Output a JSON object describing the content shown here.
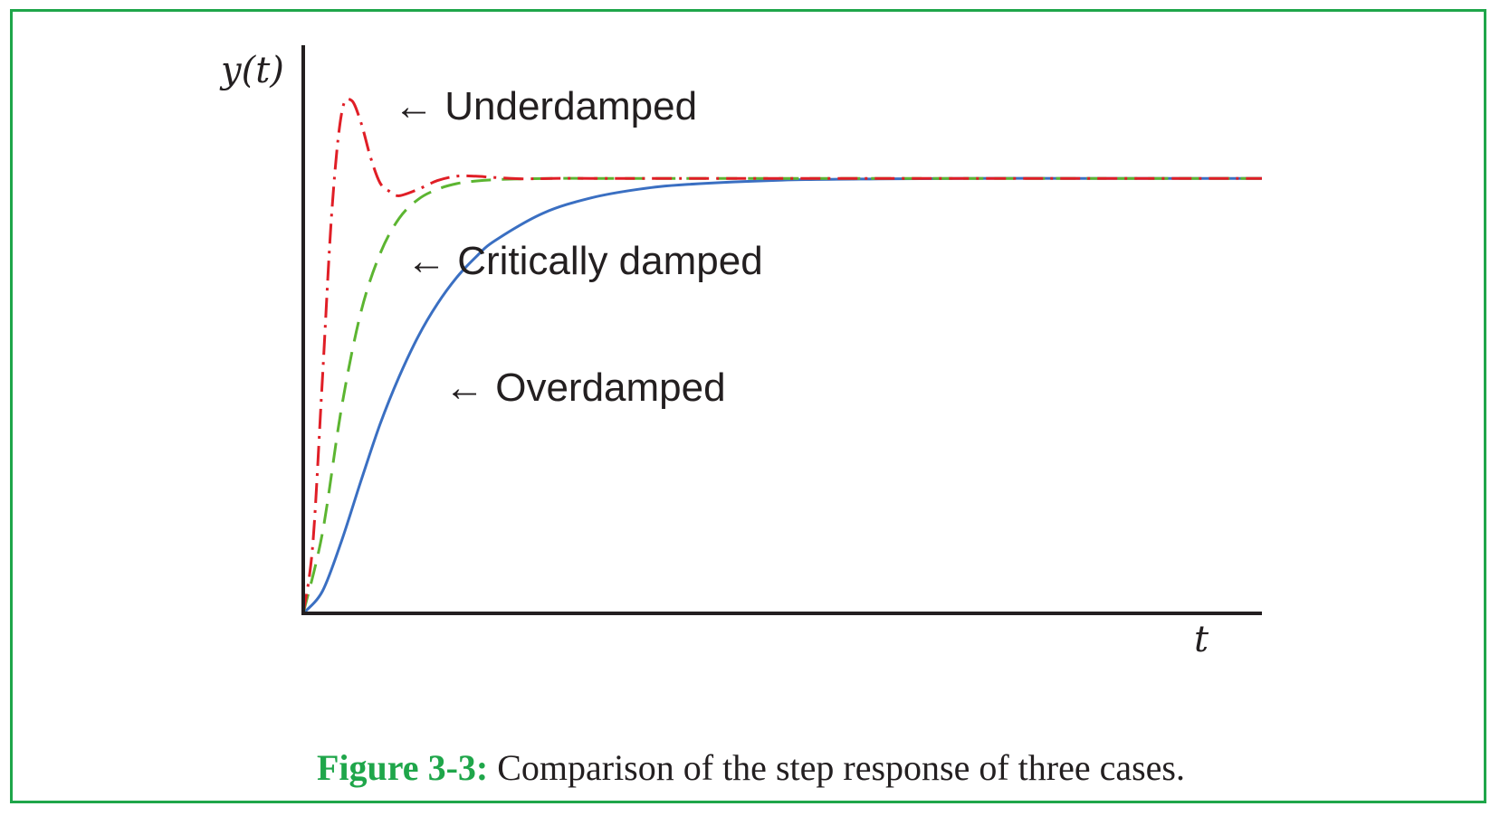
{
  "colors": {
    "frame": "#1fa64a",
    "axes": "#231f20",
    "underdamped": "#e01e26",
    "critically_damped": "#5cb531",
    "overdamped": "#3a6fc2",
    "caption_label": "#1fa64a"
  },
  "caption": {
    "label": "Figure 3-3:",
    "text": "Comparison of the step response of three cases."
  },
  "chart_data": {
    "type": "line",
    "title": "",
    "xlabel": "t",
    "ylabel": "y(t)",
    "xlim": [
      0,
      10
    ],
    "ylim": [
      0,
      1.25
    ],
    "grid": false,
    "legend": "none",
    "annotations": [
      {
        "series": "Underdamped",
        "text": "← Underdamped"
      },
      {
        "series": "Critically damped",
        "text": "← Critically damped"
      },
      {
        "series": "Overdamped",
        "text": "← Overdamped"
      }
    ],
    "series": [
      {
        "name": "Underdamped",
        "style": "dash-dot",
        "color": "#e01e26",
        "x": [
          0,
          0.1,
          0.2,
          0.3,
          0.4,
          0.5,
          0.6,
          0.7,
          0.8,
          0.9,
          1.0,
          1.2,
          1.4,
          1.6,
          1.8,
          2.0,
          2.3,
          2.6,
          3.0,
          3.5,
          4,
          6,
          8,
          10
        ],
        "y": [
          0,
          0.16,
          0.54,
          0.93,
          1.15,
          1.18,
          1.13,
          1.05,
          0.99,
          0.97,
          0.96,
          0.975,
          0.995,
          1.005,
          1.005,
          1.002,
          0.999,
          1.0,
          1.0,
          1.0,
          1.0,
          1.0,
          1.0,
          1.0
        ]
      },
      {
        "name": "Critically damped",
        "style": "dashed",
        "color": "#5cb531",
        "x": [
          0,
          0.2,
          0.4,
          0.6,
          0.8,
          1.0,
          1.2,
          1.4,
          1.6,
          1.8,
          2.0,
          2.3,
          2.6,
          3.0,
          3.5,
          4,
          5,
          6,
          8,
          10
        ],
        "y": [
          0,
          0.185,
          0.474,
          0.691,
          0.826,
          0.908,
          0.952,
          0.975,
          0.988,
          0.994,
          0.997,
          0.999,
          1.0,
          1.0,
          1.0,
          1.0,
          1.0,
          1.0,
          1.0,
          1.0
        ]
      },
      {
        "name": "Overdamped",
        "style": "solid",
        "color": "#3a6fc2",
        "x": [
          0,
          0.2,
          0.4,
          0.6,
          0.8,
          1.0,
          1.2,
          1.4,
          1.6,
          1.8,
          2.0,
          2.5,
          3.0,
          3.5,
          4.0,
          5.0,
          6.0,
          7.0,
          8.0,
          9.0,
          10.0
        ],
        "y": [
          0,
          0.051,
          0.167,
          0.303,
          0.434,
          0.544,
          0.637,
          0.712,
          0.772,
          0.819,
          0.857,
          0.92,
          0.955,
          0.975,
          0.986,
          0.996,
          0.999,
          1.0,
          1.0,
          1.0,
          1.0
        ]
      }
    ]
  }
}
